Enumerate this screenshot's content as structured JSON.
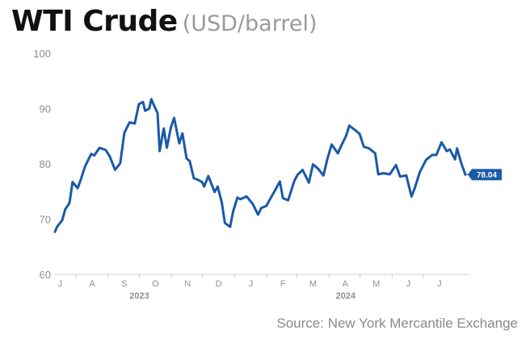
{
  "header": {
    "title": "WTI Crude",
    "unit": "(USD/barrel)"
  },
  "source": "Source: New York Mercantile Exchange",
  "colors": {
    "line": "#1a5aa8",
    "grid": "#e8e8e8",
    "axis_text": "#8f8f8f",
    "callout_bg": "#1a5aa8",
    "callout_text": "#ffffff"
  },
  "chart_data": {
    "type": "line",
    "title": "WTI Crude",
    "subtitle": "(USD/barrel)",
    "xlabel": "",
    "ylabel": "",
    "ylim": [
      60,
      100
    ],
    "yticks": [
      100,
      90,
      80,
      70,
      60
    ],
    "grid": false,
    "legend": "none",
    "x_ticks": [
      "J",
      "A",
      "S",
      "O",
      "N",
      "D",
      "J",
      "F",
      "M",
      "A",
      "M",
      "J",
      "J"
    ],
    "year_labels": [
      "2023",
      "2024"
    ],
    "last_value_label": "78.04",
    "series": [
      {
        "x": [
          "2023-06-26",
          "2023-06-28",
          "2023-07-03",
          "2023-07-06",
          "2023-07-10",
          "2023-07-13",
          "2023-07-18",
          "2023-07-21",
          "2023-07-25",
          "2023-07-31",
          "2023-08-03",
          "2023-08-08",
          "2023-08-14",
          "2023-08-18",
          "2023-08-23",
          "2023-08-28",
          "2023-09-01",
          "2023-09-06",
          "2023-09-11",
          "2023-09-15",
          "2023-09-19",
          "2023-09-21",
          "2023-09-25",
          "2023-09-27",
          "2023-09-29",
          "2023-10-03",
          "2023-10-05",
          "2023-10-09",
          "2023-10-12",
          "2023-10-16",
          "2023-10-19",
          "2023-10-24",
          "2023-10-27",
          "2023-10-31",
          "2023-11-03",
          "2023-11-07",
          "2023-11-10",
          "2023-11-15",
          "2023-11-17",
          "2023-11-21",
          "2023-11-27",
          "2023-11-30",
          "2023-12-04",
          "2023-12-07",
          "2023-12-12",
          "2023-12-15",
          "2023-12-19",
          "2023-12-22",
          "2023-12-28",
          "2024-01-03",
          "2024-01-08",
          "2024-01-11",
          "2024-01-16",
          "2024-01-19",
          "2024-01-24",
          "2024-01-29",
          "2024-02-01",
          "2024-02-06",
          "2024-02-12",
          "2024-02-15",
          "2024-02-20",
          "2024-02-26",
          "2024-03-01",
          "2024-03-06",
          "2024-03-11",
          "2024-03-15",
          "2024-03-19",
          "2024-03-25",
          "2024-03-28",
          "2024-04-02",
          "2024-04-05",
          "2024-04-10",
          "2024-04-15",
          "2024-04-19",
          "2024-04-24",
          "2024-04-30",
          "2024-05-03",
          "2024-05-08",
          "2024-05-14",
          "2024-05-20",
          "2024-05-24",
          "2024-05-30",
          "2024-06-04",
          "2024-06-07",
          "2024-06-12",
          "2024-06-18",
          "2024-06-24",
          "2024-06-28",
          "2024-07-03",
          "2024-07-08",
          "2024-07-11",
          "2024-07-16",
          "2024-07-18",
          "2024-07-22",
          "2024-07-26"
        ],
        "values": [
          67.7,
          68.6,
          69.8,
          71.8,
          72.9,
          76.7,
          75.6,
          77.2,
          79.5,
          81.8,
          81.5,
          82.9,
          82.5,
          81.3,
          78.9,
          80.1,
          85.6,
          87.5,
          87.3,
          90.8,
          91.2,
          89.6,
          90.0,
          91.7,
          90.8,
          89.2,
          82.3,
          86.4,
          82.9,
          86.7,
          88.3,
          83.7,
          85.5,
          81.0,
          80.5,
          77.4,
          77.2,
          76.7,
          75.9,
          77.8,
          74.9,
          75.9,
          73.0,
          69.3,
          68.6,
          71.4,
          73.9,
          73.6,
          74.1,
          72.7,
          70.8,
          72.0,
          72.4,
          73.4,
          75.1,
          76.8,
          73.8,
          73.4,
          76.9,
          78.0,
          78.9,
          76.6,
          79.9,
          79.1,
          77.9,
          81.0,
          83.5,
          81.9,
          83.2,
          85.1,
          86.9,
          86.2,
          85.4,
          83.1,
          82.8,
          81.9,
          78.1,
          78.3,
          78.1,
          79.8,
          77.7,
          77.9,
          74.1,
          75.5,
          78.5,
          80.7,
          81.6,
          81.6,
          83.9,
          82.3,
          82.6,
          80.8,
          82.8,
          80.1,
          78.04
        ]
      }
    ]
  }
}
